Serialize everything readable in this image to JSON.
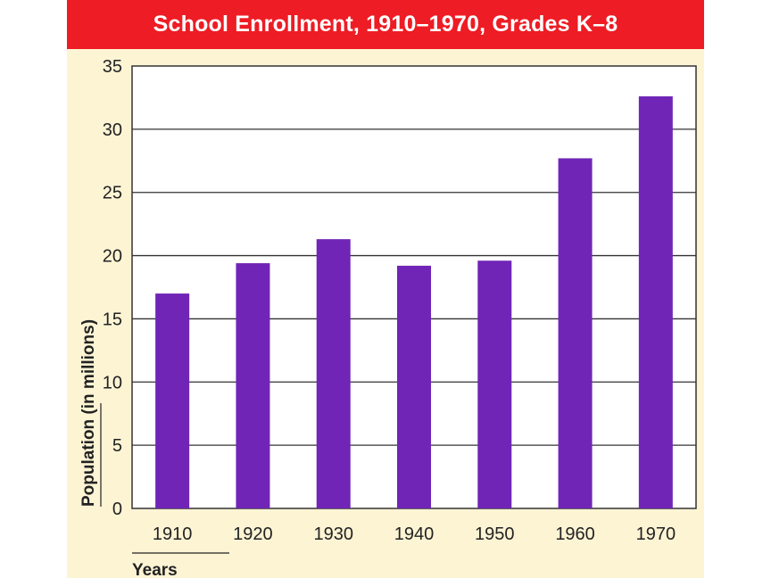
{
  "chart_data": {
    "type": "bar",
    "title": "School Enrollment, 1910–1970, Grades K–8",
    "xlabel": "Years",
    "ylabel": "Population (in millions)",
    "categories": [
      "1910",
      "1920",
      "1930",
      "1940",
      "1950",
      "1960",
      "1970"
    ],
    "values": [
      17.0,
      19.4,
      21.3,
      19.2,
      19.6,
      27.7,
      32.6
    ],
    "ylim": [
      0,
      35
    ],
    "yticks": [
      "0",
      "5",
      "10",
      "15",
      "20",
      "25",
      "30",
      "35"
    ],
    "grid": true,
    "colors": {
      "title_bar": "#ee1c24",
      "panel": "#fdf4d4",
      "bar": "#7025b7",
      "plot_bg": "#ffffff"
    }
  }
}
